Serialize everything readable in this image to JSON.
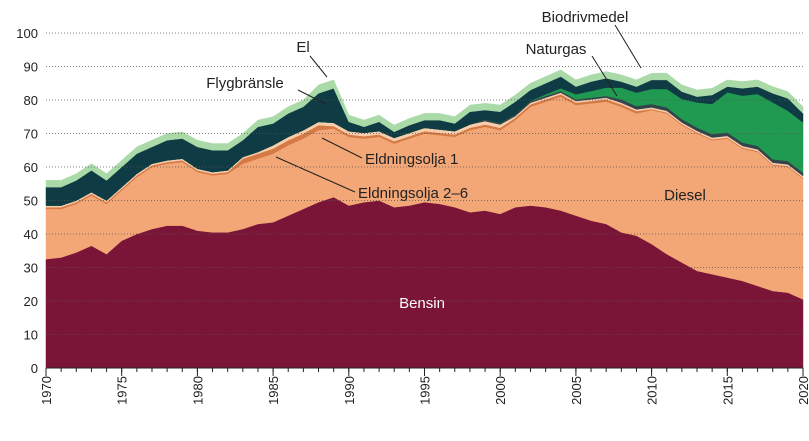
{
  "chart_data": {
    "type": "stacked_area",
    "x": [
      1970,
      1971,
      1972,
      1973,
      1974,
      1975,
      1976,
      1977,
      1978,
      1979,
      1980,
      1981,
      1982,
      1983,
      1984,
      1985,
      1986,
      1987,
      1988,
      1989,
      1990,
      1991,
      1992,
      1993,
      1994,
      1995,
      1996,
      1997,
      1998,
      1999,
      2000,
      2001,
      2002,
      2003,
      2004,
      2005,
      2006,
      2007,
      2008,
      2009,
      2010,
      2011,
      2012,
      2013,
      2014,
      2015,
      2016,
      2017,
      2018,
      2019,
      2020
    ],
    "series": [
      {
        "name": "Bensin",
        "color": "#7b1538",
        "values": [
          32.5,
          33,
          34.5,
          36.5,
          34,
          38,
          40,
          41.5,
          42.5,
          42.5,
          41,
          40.5,
          40.5,
          41.5,
          43,
          43.5,
          45.5,
          47.5,
          49.5,
          51,
          48.5,
          49.5,
          50,
          48,
          48.5,
          49.5,
          49,
          48,
          46.5,
          47,
          46,
          48,
          48.5,
          48,
          47,
          45.5,
          44,
          43,
          40.5,
          39.5,
          37,
          34,
          31.5,
          29,
          28,
          27,
          26,
          24.5,
          23,
          22.5,
          20.5
        ]
      },
      {
        "name": "Diesel",
        "color": "#f3a676",
        "values": [
          15,
          14.5,
          14.5,
          15,
          15,
          15,
          17,
          18.5,
          18.5,
          19,
          17.5,
          17,
          17.5,
          19.5,
          19.5,
          20.5,
          21,
          21,
          21.5,
          20.5,
          20.5,
          19,
          19,
          19,
          20,
          20.5,
          20.5,
          21,
          24.5,
          25,
          25,
          26,
          29.5,
          31.5,
          34,
          33,
          35,
          36.5,
          37.5,
          36.5,
          40,
          42,
          41,
          41,
          40,
          41.5,
          39.5,
          40,
          37.5,
          37.5,
          36
        ]
      },
      {
        "name": "Eldningsolja 2–6",
        "color": "#d57a45",
        "values": [
          0.5,
          0.5,
          0.5,
          0.5,
          0.5,
          0.5,
          0.5,
          0.5,
          0.5,
          0.5,
          0.5,
          0.5,
          0.5,
          1.5,
          1.5,
          1.5,
          1.5,
          1.5,
          1.5,
          0.7,
          0.7,
          0.7,
          0.7,
          0.7,
          0.7,
          0.7,
          0.7,
          0.7,
          0.7,
          0.7,
          0.7,
          0.7,
          0.7,
          0.7,
          0.7,
          0.7,
          0.7,
          0.7,
          0.7,
          0.7,
          0.3,
          0.3,
          0.3,
          0.3,
          0.3,
          0.3,
          0.3,
          0.3,
          0.3,
          0.3,
          0.3
        ]
      },
      {
        "name": "Eldningsolja 1",
        "color": "#f7cdac",
        "values": [
          0.5,
          0.5,
          0.5,
          0.5,
          0.5,
          0.5,
          0.5,
          0.5,
          0.5,
          0.5,
          0.5,
          0.5,
          0.5,
          0.5,
          0.5,
          1,
          1,
          1,
          1,
          1,
          1,
          1,
          1,
          1,
          1,
          1,
          1,
          1,
          1,
          1,
          1,
          0.5,
          0.5,
          0.5,
          0.5,
          0.5,
          0.5,
          0.5,
          0.5,
          0.5,
          0.5,
          0.5,
          0.5,
          0.5,
          0.5,
          0.5,
          0.5,
          0.5,
          0.5,
          0.5,
          0.5
        ]
      },
      {
        "name": "Naturgas",
        "color": "#33434a",
        "values": [
          0,
          0,
          0,
          0,
          0,
          0,
          0,
          0,
          0,
          0,
          0,
          0,
          0,
          0,
          0,
          0,
          0,
          0,
          0,
          0,
          0,
          0,
          0,
          0,
          0,
          0,
          0,
          0,
          0,
          0.5,
          0.5,
          0.5,
          0.5,
          0.5,
          0.5,
          0.5,
          0.5,
          0.5,
          1,
          1,
          1,
          1,
          1,
          1,
          1,
          1,
          1,
          1,
          1,
          1,
          1
        ]
      },
      {
        "name": "Biodrivmedel",
        "color": "#1f9a50",
        "values": [
          0,
          0,
          0,
          0,
          0,
          0,
          0,
          0,
          0,
          0,
          0,
          0,
          0,
          0,
          0,
          0,
          0,
          0,
          0,
          0,
          0,
          0,
          0,
          0,
          0,
          0,
          0,
          0,
          0,
          0,
          0,
          0,
          0,
          0.5,
          0.8,
          1.5,
          2,
          2.5,
          3.5,
          4,
          4.5,
          5.5,
          6,
          7.5,
          9,
          12,
          14,
          15.5,
          17,
          15,
          15
        ]
      },
      {
        "name": "Flygbränsle",
        "color": "#0f3b44",
        "values": [
          5.5,
          5.5,
          6,
          6.5,
          6,
          6,
          6,
          5,
          6,
          6,
          6.5,
          6.5,
          6,
          5,
          7.5,
          6.5,
          7,
          7,
          8.5,
          10.3,
          2.8,
          1.8,
          2.8,
          1.8,
          2.3,
          2.3,
          2.8,
          2.3,
          3.8,
          2.8,
          3.3,
          3.8,
          3.3,
          3.3,
          3.5,
          2.3,
          2.8,
          2.8,
          1.8,
          1.8,
          2.7,
          2.7,
          2.2,
          1.7,
          2.7,
          1.7,
          2.2,
          2.2,
          2.7,
          3.7,
          2.7
        ]
      },
      {
        "name": "El",
        "color": "#abdaa9",
        "values": [
          2,
          2,
          2,
          2,
          2,
          2,
          2,
          2,
          2,
          2,
          2,
          2,
          2,
          2,
          2,
          2,
          2,
          2,
          2.5,
          2.5,
          2,
          2,
          2,
          2,
          2,
          2,
          2,
          2,
          2,
          2,
          2,
          2,
          2,
          2,
          2,
          2,
          2,
          2,
          2,
          2,
          2,
          2,
          2,
          2,
          2,
          2,
          2,
          2,
          2,
          2,
          2
        ]
      }
    ],
    "xlim": [
      1970,
      2020
    ],
    "xticks": [
      1970,
      1975,
      1980,
      1985,
      1990,
      1995,
      2000,
      2005,
      2010,
      2015,
      2020
    ],
    "ylim": [
      0,
      100
    ],
    "yticks": [
      0,
      10,
      20,
      30,
      40,
      50,
      60,
      70,
      80,
      90,
      100
    ],
    "grid": true
  }
}
